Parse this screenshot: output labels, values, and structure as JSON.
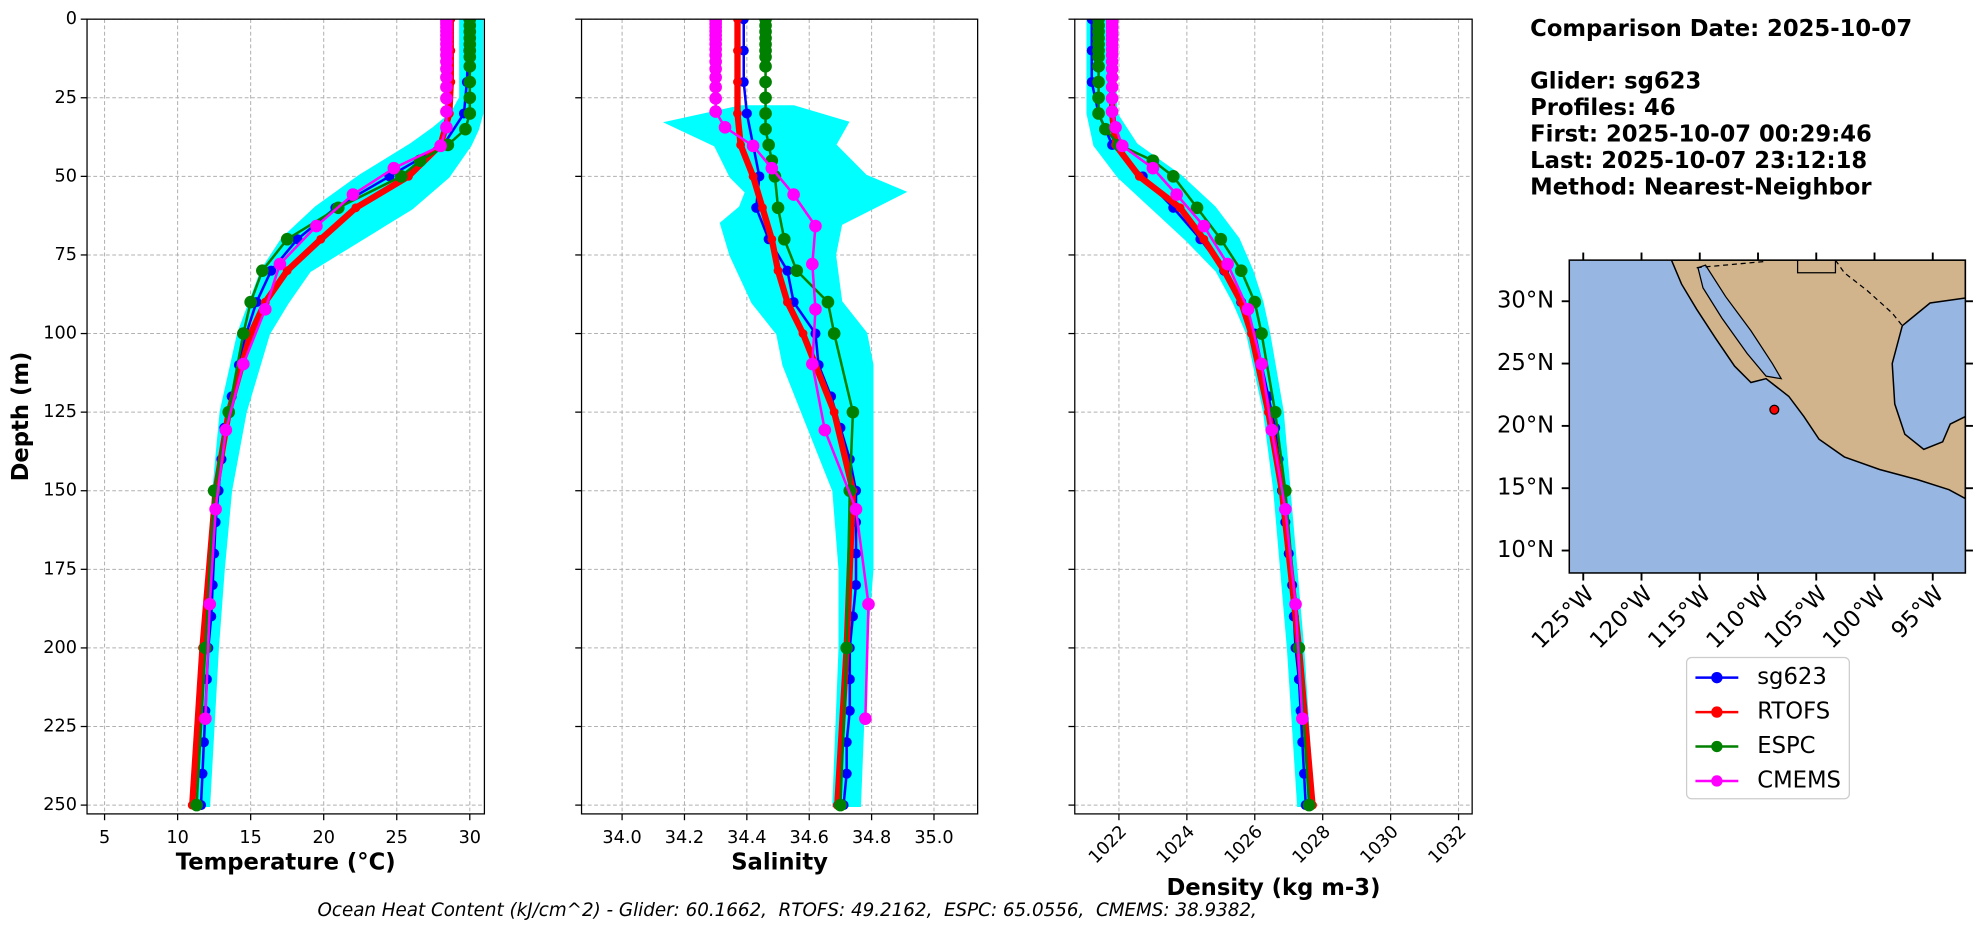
{
  "info": [
    "Comparison Date: 2025-10-07",
    "Glider: sg623",
    "Profiles: 46",
    "First: 2025-10-07 00:29:46",
    "Last: 2025-10-07 23:12:18",
    "Method: Nearest-Neighbor"
  ],
  "footer": "Ocean Heat Content (kJ/cm^2) - Glider: 60.1662,  RTOFS: 49.2162,  ESPC: 65.0556,  CMEMS: 38.9382,",
  "series": [
    {
      "name": "sg623",
      "color": "#0000ff"
    },
    {
      "name": "RTOFS",
      "color": "#ff0000"
    },
    {
      "name": "ESPC",
      "color": "#008000"
    },
    {
      "name": "CMEMS",
      "color": "#ff00ff"
    }
  ],
  "chart_data": [
    {
      "type": "line",
      "xlabel": "Temperature (°C)",
      "ylabel": "Depth (m)",
      "xlim": [
        3.8,
        31.0
      ],
      "ylim": [
        252.8,
        0
      ],
      "xticks": [
        5,
        10,
        15,
        20,
        25,
        30
      ],
      "yticks": [
        0,
        25,
        50,
        75,
        100,
        125,
        150,
        175,
        200,
        225,
        250
      ],
      "ytick_labels": true,
      "grid": true,
      "cloud": {
        "color": "#00ffff",
        "y": [
          0,
          25,
          30,
          35,
          40,
          50,
          60,
          70,
          80,
          90,
          100,
          125,
          150,
          175,
          200,
          250
        ],
        "min": [
          29.4,
          29.4,
          28.8,
          27.5,
          26.0,
          22.5,
          19.5,
          17.2,
          15.8,
          15.0,
          14.2,
          13.0,
          12.5,
          12.2,
          11.9,
          11.4
        ],
        "max": [
          30.8,
          30.8,
          30.8,
          30.5,
          30.0,
          28.5,
          26.0,
          22.5,
          19.0,
          17.5,
          16.2,
          14.6,
          13.6,
          13.1,
          12.7,
          12.1
        ]
      },
      "profiles": [
        {
          "x": [
            29.9,
            29.9,
            29.8,
            29.6,
            28.2,
            24.5,
            20.8,
            18.2,
            16.4,
            15.4,
            14.7,
            14.2,
            13.7,
            13.2,
            13.0,
            12.8,
            12.6,
            12.5,
            12.4,
            12.3,
            12.1,
            12.0,
            11.9,
            11.8,
            11.7,
            11.6
          ],
          "y": [
            0,
            10,
            20,
            30,
            40,
            50,
            60,
            70,
            80,
            90,
            100,
            110,
            120,
            130,
            140,
            150,
            160,
            170,
            180,
            190,
            200,
            210,
            220,
            230,
            240,
            250
          ]
        },
        {
          "x": [
            28.7,
            28.7,
            28.7,
            28.6,
            28.0,
            25.8,
            22.2,
            19.8,
            17.5,
            16.0,
            15.0,
            13.5,
            12.6,
            11.7,
            11.0
          ],
          "y": [
            0,
            10,
            20,
            30,
            40,
            50,
            60,
            70,
            80,
            90,
            100,
            125,
            150,
            200,
            250
          ]
        },
        {
          "x": [
            30.0,
            30.0,
            30.0,
            30.0,
            30.0,
            30.0,
            30.0,
            30.0,
            30.0,
            30.0,
            30.0,
            29.7,
            28.5,
            26.6,
            25.3,
            21.0,
            17.5,
            15.8,
            15.0,
            14.5,
            13.5,
            12.5,
            11.9,
            11.3
          ],
          "y": [
            0,
            2,
            4,
            6,
            8,
            10,
            12,
            15,
            20,
            25,
            30,
            35,
            40,
            45,
            50,
            60,
            70,
            80,
            90,
            100,
            125,
            150,
            200,
            250
          ]
        },
        {
          "x": [
            28.4,
            28.4,
            28.4,
            28.4,
            28.4,
            28.4,
            28.4,
            28.4,
            28.4,
            28.4,
            28.4,
            28.4,
            28.4,
            28.4,
            28.4,
            28.4,
            28.0,
            24.8,
            22.0,
            19.5,
            17.0,
            16.0,
            14.5,
            13.3,
            12.6,
            12.2,
            11.9
          ],
          "y": [
            0.5,
            1.5,
            2.6,
            3.8,
            5.1,
            6.4,
            7.9,
            9.6,
            11.4,
            13.5,
            15.8,
            18.5,
            21.6,
            25.2,
            29.4,
            34.4,
            40.3,
            47.4,
            55.8,
            65.8,
            77.9,
            92.3,
            109.7,
            130.7,
            155.9,
            186.1,
            222.5
          ]
        }
      ]
    },
    {
      "type": "line",
      "xlabel": "Salinity",
      "xlim": [
        33.87,
        35.14
      ],
      "ylim": [
        252.8,
        0
      ],
      "xticks": [
        {
          "value": 34,
          "label": "34.0"
        },
        34.2,
        34.4,
        34.6,
        34.8,
        {
          "value": 35,
          "label": "35.0"
        }
      ],
      "yticks": [
        0,
        25,
        50,
        75,
        100,
        125,
        150,
        175,
        200,
        225,
        250
      ],
      "ytick_labels": false,
      "grid": true,
      "cloud": {
        "color": "#00ffff",
        "y": [
          28,
          33,
          40,
          50,
          55,
          60,
          65,
          75,
          90,
          100,
          110,
          125,
          150,
          175,
          200,
          250
        ],
        "min": [
          34.38,
          34.15,
          34.3,
          34.35,
          34.4,
          34.38,
          34.32,
          34.35,
          34.42,
          34.5,
          34.52,
          34.58,
          34.68,
          34.7,
          34.7,
          34.68
        ],
        "max": [
          34.55,
          34.72,
          34.68,
          34.78,
          34.9,
          34.8,
          34.7,
          34.68,
          34.7,
          34.78,
          34.8,
          34.8,
          34.8,
          34.8,
          34.78,
          34.76
        ]
      },
      "profiles": [
        {
          "x": [
            34.39,
            34.39,
            34.39,
            34.4,
            34.42,
            34.44,
            34.43,
            34.47,
            34.53,
            34.55,
            34.62,
            34.63,
            34.67,
            34.7,
            34.73,
            34.75,
            34.75,
            34.75,
            34.75,
            34.74,
            34.73,
            34.73,
            34.73,
            34.72,
            34.72,
            34.71
          ],
          "y": [
            0,
            10,
            20,
            30,
            40,
            50,
            60,
            70,
            80,
            90,
            100,
            110,
            120,
            130,
            140,
            150,
            160,
            170,
            180,
            190,
            200,
            210,
            220,
            230,
            240,
            250
          ]
        },
        {
          "x": [
            34.37,
            34.37,
            34.37,
            34.37,
            34.38,
            34.42,
            34.45,
            34.48,
            34.5,
            34.53,
            34.58,
            34.68,
            34.74,
            34.72,
            34.69
          ],
          "y": [
            0,
            10,
            20,
            30,
            40,
            50,
            60,
            70,
            80,
            90,
            100,
            125,
            150,
            200,
            250
          ]
        },
        {
          "x": [
            34.46,
            34.46,
            34.46,
            34.46,
            34.46,
            34.46,
            34.46,
            34.46,
            34.46,
            34.46,
            34.46,
            34.46,
            34.47,
            34.48,
            34.49,
            34.5,
            34.52,
            34.56,
            34.66,
            34.68,
            34.74,
            34.73,
            34.72,
            34.7
          ],
          "y": [
            0,
            2,
            4,
            6,
            8,
            10,
            12,
            15,
            20,
            25,
            30,
            35,
            40,
            45,
            50,
            60,
            70,
            80,
            90,
            100,
            125,
            150,
            200,
            250
          ]
        },
        {
          "x": [
            34.3,
            34.3,
            34.3,
            34.3,
            34.3,
            34.3,
            34.3,
            34.3,
            34.3,
            34.3,
            34.3,
            34.3,
            34.3,
            34.3,
            34.3,
            34.33,
            34.42,
            34.48,
            34.55,
            34.62,
            34.61,
            34.62,
            34.61,
            34.65,
            34.75,
            34.79,
            34.78
          ],
          "y": [
            0.5,
            1.5,
            2.6,
            3.8,
            5.1,
            6.4,
            7.9,
            9.6,
            11.4,
            13.5,
            15.8,
            18.5,
            21.6,
            25.2,
            29.4,
            34.4,
            40.3,
            47.4,
            55.8,
            65.8,
            77.9,
            92.3,
            109.7,
            130.7,
            155.9,
            186.1,
            222.5
          ]
        }
      ]
    },
    {
      "type": "line",
      "xlabel": "Density (kg m-3)",
      "xlim": [
        1020.7,
        1032.4
      ],
      "ylim": [
        252.8,
        0
      ],
      "xticks": [
        1022,
        1024,
        1026,
        1028,
        1030,
        1032
      ],
      "xtick_rotation": 45,
      "yticks": [
        0,
        25,
        50,
        75,
        100,
        125,
        150,
        175,
        200,
        225,
        250
      ],
      "ytick_labels": false,
      "grid": true,
      "cloud": {
        "color": "#00ffff",
        "y": [
          0,
          30,
          40,
          50,
          60,
          70,
          80,
          90,
          100,
          125,
          150,
          200,
          250
        ],
        "min": [
          1021.1,
          1021.1,
          1021.3,
          1022.0,
          1023.0,
          1024.0,
          1024.9,
          1025.4,
          1025.8,
          1026.3,
          1026.6,
          1027.0,
          1027.3
        ],
        "max": [
          1021.8,
          1021.9,
          1022.5,
          1023.8,
          1024.8,
          1025.5,
          1025.9,
          1026.2,
          1026.4,
          1026.8,
          1027.0,
          1027.4,
          1027.7
        ]
      },
      "profiles": [
        {
          "x": [
            1021.2,
            1021.2,
            1021.2,
            1021.4,
            1021.8,
            1022.7,
            1023.6,
            1024.4,
            1025.1,
            1025.6,
            1026.0,
            1026.2,
            1026.4,
            1026.6,
            1026.7,
            1026.8,
            1026.9,
            1027.0,
            1027.1,
            1027.15,
            1027.2,
            1027.3,
            1027.35,
            1027.4,
            1027.45,
            1027.5
          ],
          "y": [
            0,
            10,
            20,
            30,
            40,
            50,
            60,
            70,
            80,
            90,
            100,
            110,
            120,
            130,
            140,
            150,
            160,
            170,
            180,
            190,
            200,
            210,
            220,
            230,
            240,
            250
          ]
        },
        {
          "x": [
            1021.8,
            1021.8,
            1021.8,
            1021.8,
            1021.9,
            1022.6,
            1023.8,
            1024.5,
            1025.1,
            1025.6,
            1025.9,
            1026.4,
            1026.8,
            1027.3,
            1027.7
          ],
          "y": [
            0,
            10,
            20,
            30,
            40,
            50,
            60,
            70,
            80,
            90,
            100,
            125,
            150,
            200,
            250
          ]
        },
        {
          "x": [
            1021.4,
            1021.4,
            1021.4,
            1021.4,
            1021.4,
            1021.4,
            1021.4,
            1021.4,
            1021.4,
            1021.4,
            1021.4,
            1021.6,
            1022.0,
            1023.0,
            1023.6,
            1024.3,
            1025.0,
            1025.6,
            1026.0,
            1026.2,
            1026.6,
            1026.9,
            1027.3,
            1027.6
          ],
          "y": [
            0,
            2,
            4,
            6,
            8,
            10,
            12,
            15,
            20,
            25,
            30,
            35,
            40,
            45,
            50,
            60,
            70,
            80,
            90,
            100,
            125,
            150,
            200,
            250
          ]
        },
        {
          "x": [
            1021.8,
            1021.8,
            1021.8,
            1021.8,
            1021.8,
            1021.8,
            1021.8,
            1021.8,
            1021.8,
            1021.8,
            1021.8,
            1021.8,
            1021.8,
            1021.8,
            1021.8,
            1021.9,
            1022.1,
            1023.0,
            1023.7,
            1024.5,
            1025.2,
            1025.8,
            1026.2,
            1026.5,
            1026.9,
            1027.2,
            1027.4
          ],
          "y": [
            0.5,
            1.5,
            2.6,
            3.8,
            5.1,
            6.4,
            7.9,
            9.6,
            11.4,
            13.5,
            15.8,
            18.5,
            21.6,
            25.2,
            29.4,
            34.4,
            40.3,
            47.4,
            55.8,
            65.8,
            77.9,
            92.3,
            109.7,
            130.7,
            155.9,
            186.1,
            222.5
          ]
        }
      ]
    },
    {
      "type": "map",
      "xlim": [
        -126.2,
        -92.2
      ],
      "ylim": [
        8.2,
        33.3
      ],
      "xticks": [
        {
          "value": -125,
          "label": "125°W"
        },
        {
          "value": -120,
          "label": "120°W"
        },
        {
          "value": -115,
          "label": "115°W"
        },
        {
          "value": -110,
          "label": "110°W"
        },
        {
          "value": -105,
          "label": "105°W"
        },
        {
          "value": -100,
          "label": "100°W"
        },
        {
          "value": -95,
          "label": "95°W"
        }
      ],
      "yticks": [
        {
          "value": 10,
          "label": "10°N"
        },
        {
          "value": 15,
          "label": "15°N"
        },
        {
          "value": 20,
          "label": "20°N"
        },
        {
          "value": 25,
          "label": "25°N"
        },
        {
          "value": 30,
          "label": "30°N"
        }
      ],
      "points": {
        "x": [
          -108.6
        ],
        "y": [
          21.3
        ],
        "color": "#ff0000"
      }
    }
  ]
}
